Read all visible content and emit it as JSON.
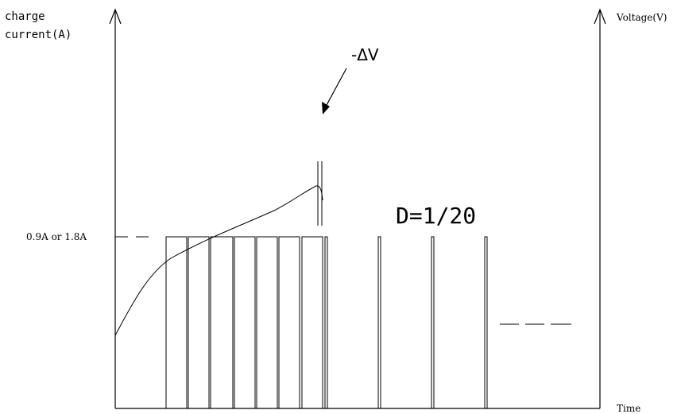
{
  "labels": {
    "y_left_line1": "charge",
    "y_left_line2": "current(A)",
    "y_right": "Voltage(V)",
    "x_axis": "Time",
    "current_level": "0.9A or 1.8A",
    "delta_v": "-ΔV",
    "duty": "D=1/20"
  },
  "colors": {
    "stroke": "#000000",
    "background": "#ffffff"
  }
}
